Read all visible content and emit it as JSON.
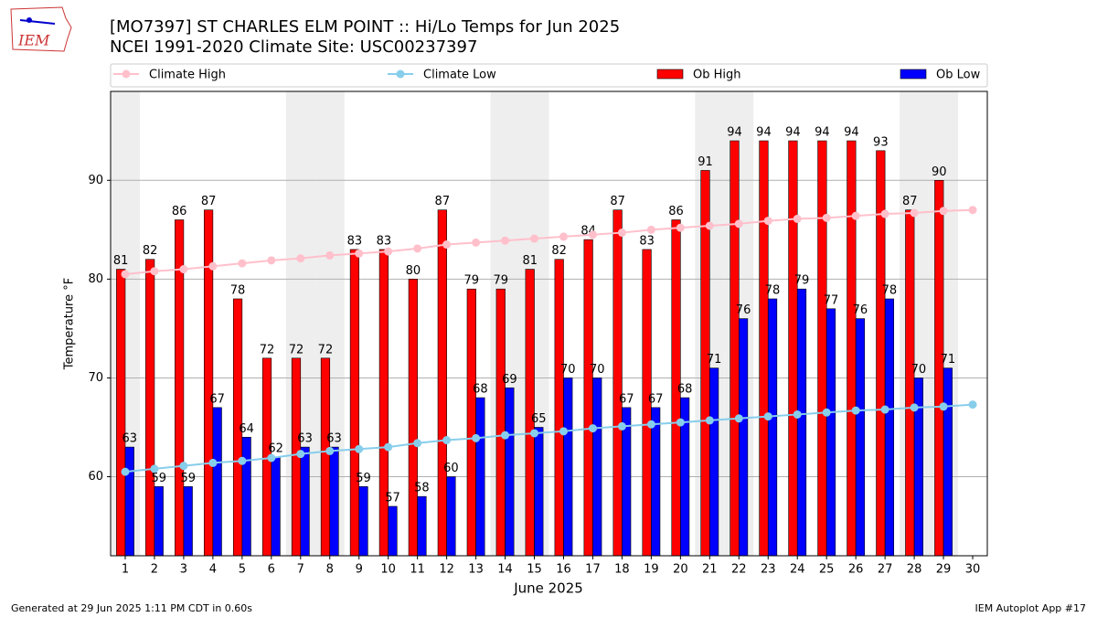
{
  "chart_data": {
    "type": "bar",
    "title": "[MO7397] ST CHARLES ELM POINT :: Hi/Lo Temps for Jun 2025",
    "subtitle": "NCEI 1991-2020 Climate Site: USC00237397",
    "logo_text": "IEM",
    "xlabel": "June 2025",
    "ylabel": "Temperature °F",
    "footer_left": "Generated at 29 Jun 2025 1:11 PM CDT in 0.60s",
    "footer_right": "IEM Autoplot App #17",
    "x": [
      1,
      2,
      3,
      4,
      5,
      6,
      7,
      8,
      9,
      10,
      11,
      12,
      13,
      14,
      15,
      16,
      17,
      18,
      19,
      20,
      21,
      22,
      23,
      24,
      25,
      26,
      27,
      28,
      29,
      30
    ],
    "xlim": [
      0.5,
      30.5
    ],
    "xticks": [
      1,
      2,
      3,
      4,
      5,
      6,
      7,
      8,
      9,
      10,
      11,
      12,
      13,
      14,
      15,
      16,
      17,
      18,
      19,
      20,
      21,
      22,
      23,
      24,
      25,
      26,
      27,
      28,
      29,
      30
    ],
    "ylim": [
      52,
      99
    ],
    "yticks": [
      60,
      70,
      80,
      90
    ],
    "grid": true,
    "shaded_days": [
      1,
      7,
      8,
      14,
      15,
      21,
      22,
      28,
      29
    ],
    "shade_color": "#eeeeee",
    "series": [
      {
        "name": "Climate High",
        "type": "line",
        "color": "#ffc0cb",
        "values": [
          80.5,
          80.8,
          81.0,
          81.3,
          81.6,
          81.9,
          82.1,
          82.4,
          82.6,
          82.8,
          83.1,
          83.5,
          83.7,
          83.9,
          84.1,
          84.3,
          84.5,
          84.7,
          85.0,
          85.2,
          85.4,
          85.6,
          85.9,
          86.1,
          86.2,
          86.4,
          86.6,
          86.7,
          86.9,
          87.0
        ]
      },
      {
        "name": "Climate Low",
        "type": "line",
        "color": "#87ceeb",
        "values": [
          60.5,
          60.8,
          61.1,
          61.4,
          61.6,
          61.9,
          62.3,
          62.6,
          62.8,
          63.0,
          63.4,
          63.7,
          63.9,
          64.2,
          64.4,
          64.6,
          64.9,
          65.1,
          65.3,
          65.5,
          65.7,
          65.9,
          66.1,
          66.3,
          66.5,
          66.7,
          66.8,
          67.0,
          67.1,
          67.3
        ]
      },
      {
        "name": "Ob High",
        "type": "bar",
        "color": "#ff0000",
        "values": [
          81,
          82,
          86,
          87,
          78,
          72,
          72,
          72,
          83,
          83,
          80,
          87,
          79,
          79,
          81,
          82,
          84,
          87,
          83,
          86,
          91,
          94,
          94,
          94,
          94,
          94,
          93,
          87,
          90,
          null
        ]
      },
      {
        "name": "Ob Low",
        "type": "bar",
        "color": "#0000ff",
        "values": [
          63,
          59,
          59,
          67,
          64,
          62,
          63,
          63,
          59,
          57,
          58,
          60,
          68,
          69,
          65,
          70,
          70,
          67,
          67,
          68,
          71,
          76,
          78,
          79,
          77,
          76,
          78,
          70,
          71,
          null
        ]
      }
    ]
  }
}
